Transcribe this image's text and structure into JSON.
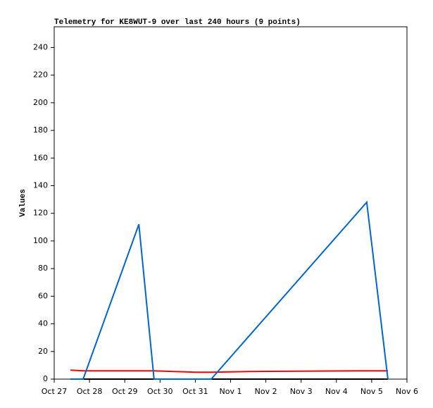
{
  "chart_data": {
    "type": "line",
    "title": "Telemetry for KE8WUT-9 over last 240 hours (9 points)",
    "ylabel": "Values",
    "x": [
      0.46,
      0.82,
      2.4,
      2.83,
      4.0,
      4.45,
      5.5,
      8.86,
      9.46
    ],
    "series": [
      {
        "color": "#000000",
        "values": [
          0,
          0,
          0,
          0,
          0,
          0,
          0,
          0,
          0
        ]
      },
      {
        "color": "#ff0000",
        "values": [
          6.5,
          6,
          6,
          6,
          5,
          5,
          5.5,
          6,
          6
        ]
      },
      {
        "color": "#0066cc",
        "values": [
          0,
          0,
          112,
          0,
          0,
          0,
          30.5,
          128,
          0
        ]
      }
    ],
    "xlim": [
      0,
      10
    ],
    "xticks": [
      {
        "value": 0,
        "label": "Oct 27"
      },
      {
        "value": 1,
        "label": "Oct 28"
      },
      {
        "value": 2,
        "label": "Oct 29"
      },
      {
        "value": 3,
        "label": "Oct 30"
      },
      {
        "value": 4,
        "label": "Oct 31"
      },
      {
        "value": 5,
        "label": "Nov 1"
      },
      {
        "value": 6,
        "label": "Nov 2"
      },
      {
        "value": 7,
        "label": "Nov 3"
      },
      {
        "value": 8,
        "label": "Nov 4"
      },
      {
        "value": 9,
        "label": "Nov 5"
      },
      {
        "value": 10,
        "label": "Nov 6"
      }
    ],
    "ylim": [
      0,
      255
    ],
    "yticks": [
      0,
      20,
      40,
      60,
      80,
      100,
      120,
      140,
      160,
      180,
      200,
      220,
      240
    ],
    "grid": false
  }
}
